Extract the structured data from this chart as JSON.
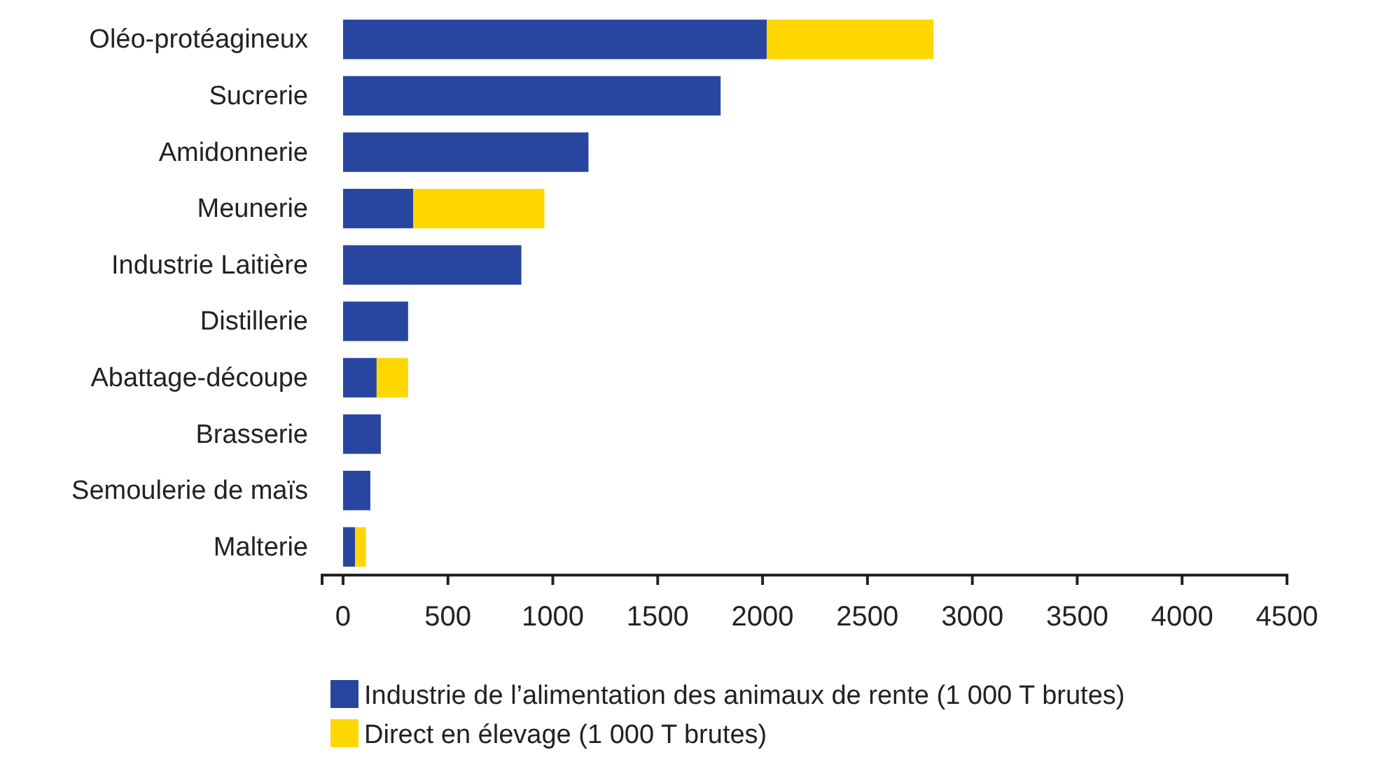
{
  "chart_data": {
    "type": "bar",
    "orientation": "horizontal",
    "stacked": true,
    "categories": [
      "Oléo-protéagineux",
      "Sucrerie",
      "Amidonnerie",
      "Meunerie",
      "Industrie Laitière",
      "Distillerie",
      "Abattage-découpe",
      "Brasserie",
      "Semoulerie de maïs",
      "Malterie"
    ],
    "series": [
      {
        "name": "Industrie de l’alimentation des animaux de rente (1 000 T brutes)",
        "color": "#2846a0",
        "values": [
          2020,
          1800,
          1170,
          335,
          850,
          310,
          160,
          180,
          130,
          57
        ]
      },
      {
        "name": "Direct en élevage (1 000 T brutes)",
        "color": "#ffd700",
        "values": [
          795,
          null,
          null,
          625,
          null,
          null,
          150,
          null,
          null,
          52
        ]
      }
    ],
    "xlim": [
      -100,
      4500
    ],
    "xticks": [
      0,
      500,
      1000,
      1500,
      2000,
      2500,
      3000,
      3500,
      4000,
      4500
    ],
    "grid": false,
    "legend": "bottom"
  }
}
